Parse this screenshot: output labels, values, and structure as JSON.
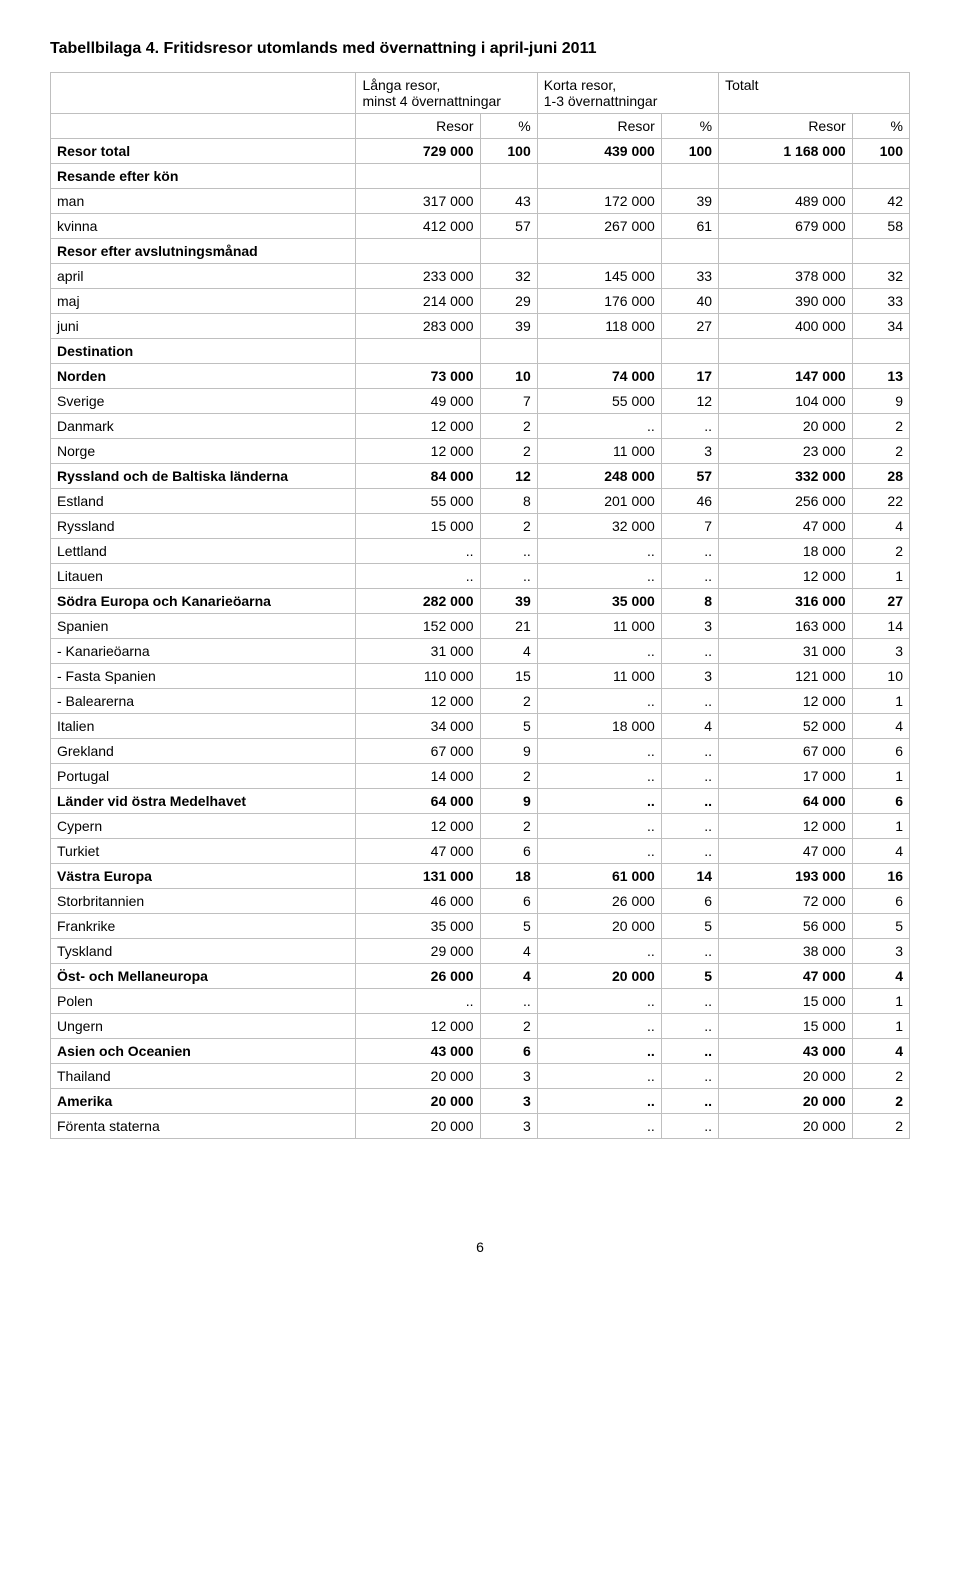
{
  "title": "Tabellbilaga 4. Fritidsresor utomlands med övernattning i april-juni 2011",
  "table": {
    "group_headers": [
      {
        "label": "Långa resor,\nminst 4 övernattningar"
      },
      {
        "label": "Korta resor,\n1-3 övernattningar"
      },
      {
        "label": "Totalt"
      }
    ],
    "sub_headers": [
      "Resor",
      "%",
      "Resor",
      "%",
      "Resor",
      "%"
    ],
    "rows": [
      {
        "label": "Resor total",
        "bold": true,
        "cells": [
          "729 000",
          "100",
          "439 000",
          "100",
          "1 168 000",
          "100"
        ]
      },
      {
        "label": "Resande efter kön",
        "bold": true,
        "cells": [
          "",
          "",
          "",
          "",
          "",
          ""
        ]
      },
      {
        "label": "man",
        "cells": [
          "317 000",
          "43",
          "172 000",
          "39",
          "489 000",
          "42"
        ]
      },
      {
        "label": "kvinna",
        "cells": [
          "412 000",
          "57",
          "267 000",
          "61",
          "679 000",
          "58"
        ]
      },
      {
        "label": "Resor efter avslutningsmånad",
        "bold": true,
        "cells": [
          "",
          "",
          "",
          "",
          "",
          ""
        ]
      },
      {
        "label": "april",
        "cells": [
          "233 000",
          "32",
          "145 000",
          "33",
          "378 000",
          "32"
        ]
      },
      {
        "label": "maj",
        "cells": [
          "214 000",
          "29",
          "176 000",
          "40",
          "390 000",
          "33"
        ]
      },
      {
        "label": "juni",
        "cells": [
          "283 000",
          "39",
          "118 000",
          "27",
          "400 000",
          "34"
        ]
      },
      {
        "label": "Destination",
        "bold": true,
        "cells": [
          "",
          "",
          "",
          "",
          "",
          ""
        ]
      },
      {
        "label": "Norden",
        "bold": true,
        "cells": [
          "73 000",
          "10",
          "74 000",
          "17",
          "147 000",
          "13"
        ]
      },
      {
        "label": "Sverige",
        "cells": [
          "49 000",
          "7",
          "55 000",
          "12",
          "104 000",
          "9"
        ]
      },
      {
        "label": "Danmark",
        "cells": [
          "12 000",
          "2",
          "..",
          "..",
          "20 000",
          "2"
        ]
      },
      {
        "label": "Norge",
        "cells": [
          "12 000",
          "2",
          "11 000",
          "3",
          "23 000",
          "2"
        ]
      },
      {
        "label": "Ryssland och de Baltiska länderna",
        "bold": true,
        "cells": [
          "84 000",
          "12",
          "248 000",
          "57",
          "332 000",
          "28"
        ]
      },
      {
        "label": "Estland",
        "cells": [
          "55 000",
          "8",
          "201 000",
          "46",
          "256 000",
          "22"
        ]
      },
      {
        "label": "Ryssland",
        "cells": [
          "15 000",
          "2",
          "32 000",
          "7",
          "47 000",
          "4"
        ]
      },
      {
        "label": "Lettland",
        "cells": [
          "..",
          "..",
          "..",
          "..",
          "18 000",
          "2"
        ]
      },
      {
        "label": "Litauen",
        "cells": [
          "..",
          "..",
          "..",
          "..",
          "12 000",
          "1"
        ]
      },
      {
        "label": "Södra Europa och Kanarieöarna",
        "bold": true,
        "cells": [
          "282 000",
          "39",
          "35 000",
          "8",
          "316 000",
          "27"
        ]
      },
      {
        "label": "Spanien",
        "cells": [
          "152 000",
          "21",
          "11 000",
          "3",
          "163 000",
          "14"
        ]
      },
      {
        "label": "- Kanarieöarna",
        "cells": [
          "31 000",
          "4",
          "..",
          "..",
          "31 000",
          "3"
        ]
      },
      {
        "label": "- Fasta Spanien",
        "cells": [
          "110 000",
          "15",
          "11 000",
          "3",
          "121 000",
          "10"
        ]
      },
      {
        "label": "- Balearerna",
        "cells": [
          "12 000",
          "2",
          "..",
          "..",
          "12 000",
          "1"
        ]
      },
      {
        "label": "Italien",
        "cells": [
          "34 000",
          "5",
          "18 000",
          "4",
          "52 000",
          "4"
        ]
      },
      {
        "label": "Grekland",
        "cells": [
          "67 000",
          "9",
          "..",
          "..",
          "67 000",
          "6"
        ]
      },
      {
        "label": "Portugal",
        "cells": [
          "14 000",
          "2",
          "..",
          "..",
          "17 000",
          "1"
        ]
      },
      {
        "label": "Länder vid östra Medelhavet",
        "bold": true,
        "cells": [
          "64 000",
          "9",
          "..",
          "..",
          "64 000",
          "6"
        ]
      },
      {
        "label": "Cypern",
        "cells": [
          "12 000",
          "2",
          "..",
          "..",
          "12 000",
          "1"
        ]
      },
      {
        "label": "Turkiet",
        "cells": [
          "47 000",
          "6",
          "..",
          "..",
          "47 000",
          "4"
        ]
      },
      {
        "label": "Västra Europa",
        "bold": true,
        "cells": [
          "131 000",
          "18",
          "61 000",
          "14",
          "193 000",
          "16"
        ]
      },
      {
        "label": "Storbritannien",
        "cells": [
          "46 000",
          "6",
          "26 000",
          "6",
          "72 000",
          "6"
        ]
      },
      {
        "label": "Frankrike",
        "cells": [
          "35 000",
          "5",
          "20 000",
          "5",
          "56 000",
          "5"
        ]
      },
      {
        "label": "Tyskland",
        "cells": [
          "29 000",
          "4",
          "..",
          "..",
          "38 000",
          "3"
        ]
      },
      {
        "label": "Öst- och Mellaneuropa",
        "bold": true,
        "cells": [
          "26 000",
          "4",
          "20 000",
          "5",
          "47 000",
          "4"
        ]
      },
      {
        "label": "Polen",
        "cells": [
          "..",
          "..",
          "..",
          "..",
          "15 000",
          "1"
        ]
      },
      {
        "label": "Ungern",
        "cells": [
          "12 000",
          "2",
          "..",
          "..",
          "15 000",
          "1"
        ]
      },
      {
        "label": "Asien och Oceanien",
        "bold": true,
        "cells": [
          "43 000",
          "6",
          "..",
          "..",
          "43 000",
          "4"
        ]
      },
      {
        "label": "Thailand",
        "cells": [
          "20 000",
          "3",
          "..",
          "..",
          "20 000",
          "2"
        ]
      },
      {
        "label": "Amerika",
        "bold": true,
        "cells": [
          "20 000",
          "3",
          "..",
          "..",
          "20 000",
          "2"
        ]
      },
      {
        "label": "Förenta staterna",
        "cells": [
          "20 000",
          "3",
          "..",
          "..",
          "20 000",
          "2"
        ]
      }
    ]
  },
  "page_number": "6",
  "style": {
    "font_family": "Arial",
    "title_fontsize": 16,
    "body_fontsize": 14,
    "border_color": "#bfbfbf",
    "background_color": "#ffffff",
    "text_color": "#000000"
  }
}
